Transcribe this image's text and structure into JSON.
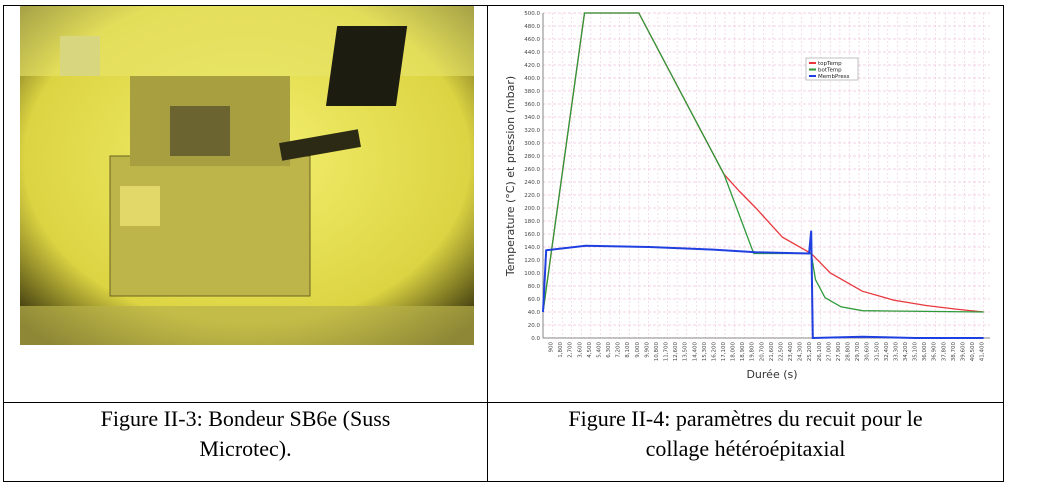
{
  "figures": [
    {
      "caption": "Figure II-3: Bondeur SB6e (Suss Microtec)."
    },
    {
      "caption": "Figure II-4: paramètres du recuit pour le collage hétéroépitaxial"
    }
  ],
  "chart_data": {
    "type": "line",
    "ylabel": "Temperature (°C) et pression (mbar)",
    "xlabel": "Durée (s)",
    "xlim": [
      0,
      42000
    ],
    "ylim": [
      0,
      500
    ],
    "grid": true,
    "legend": "upper right",
    "yticks": [
      {
        "value": 0,
        "label": "0.0"
      },
      {
        "value": 20,
        "label": "20.0"
      },
      {
        "value": 40,
        "label": "40.0"
      },
      {
        "value": 60,
        "label": "60.0"
      },
      {
        "value": 80,
        "label": "80.0"
      },
      {
        "value": 100,
        "label": "100.0"
      },
      {
        "value": 120,
        "label": "120.0"
      },
      {
        "value": 140,
        "label": "140.0"
      },
      {
        "value": 160,
        "label": "160.0"
      },
      {
        "value": 180,
        "label": "180.0"
      },
      {
        "value": 200,
        "label": "200.0"
      },
      {
        "value": 220,
        "label": "220.0"
      },
      {
        "value": 240,
        "label": "240.0"
      },
      {
        "value": 260,
        "label": "260.0"
      },
      {
        "value": 280,
        "label": "280.0"
      },
      {
        "value": 300,
        "label": "300.0"
      },
      {
        "value": 320,
        "label": "320.0"
      },
      {
        "value": 340,
        "label": "340.0"
      },
      {
        "value": 360,
        "label": "360.0"
      },
      {
        "value": 380,
        "label": "380.0"
      },
      {
        "value": 400,
        "label": "400.0"
      },
      {
        "value": 420,
        "label": "420.0"
      },
      {
        "value": 440,
        "label": "440.0"
      },
      {
        "value": 460,
        "label": "460.0"
      },
      {
        "value": 480,
        "label": "480.0"
      },
      {
        "value": 500,
        "label": "500.0"
      }
    ],
    "xticks": [
      900,
      {
        "value": 1800,
        "label": "1,800"
      },
      {
        "value": 2700,
        "label": "2,700"
      },
      {
        "value": 3600,
        "label": "3,600"
      },
      {
        "value": 4500,
        "label": "4,500"
      },
      {
        "value": 5400,
        "label": "5,400"
      },
      {
        "value": 6300,
        "label": "6,300"
      },
      {
        "value": 7200,
        "label": "7,200"
      },
      {
        "value": 8100,
        "label": "8,100"
      },
      {
        "value": 9000,
        "label": "9,000"
      },
      {
        "value": 9900,
        "label": "9,900"
      },
      {
        "value": 10800,
        "label": "10,800"
      },
      {
        "value": 11700,
        "label": "11,700"
      },
      {
        "value": 12600,
        "label": "12,600"
      },
      {
        "value": 13500,
        "label": "13,500"
      },
      {
        "value": 14400,
        "label": "14,400"
      },
      {
        "value": 15300,
        "label": "15,300"
      },
      {
        "value": 16200,
        "label": "16,200"
      },
      {
        "value": 17100,
        "label": "17,100"
      },
      {
        "value": 18000,
        "label": "18,000"
      },
      {
        "value": 18900,
        "label": "18,900"
      },
      {
        "value": 19800,
        "label": "19,800"
      },
      {
        "value": 20700,
        "label": "20,700"
      },
      {
        "value": 21600,
        "label": "21,600"
      },
      {
        "value": 22500,
        "label": "22,500"
      },
      {
        "value": 23400,
        "label": "23,400"
      },
      {
        "value": 24300,
        "label": "24,300"
      },
      {
        "value": 25200,
        "label": "25,200"
      },
      {
        "value": 26100,
        "label": "26,100"
      },
      {
        "value": 27000,
        "label": "27,000"
      },
      {
        "value": 27900,
        "label": "27,900"
      },
      {
        "value": 28800,
        "label": "28,800"
      },
      {
        "value": 29700,
        "label": "29,700"
      },
      {
        "value": 30600,
        "label": "30,600"
      },
      {
        "value": 31500,
        "label": "31,500"
      },
      {
        "value": 32400,
        "label": "32,400"
      },
      {
        "value": 33300,
        "label": "33,300"
      },
      {
        "value": 34200,
        "label": "34,200"
      },
      {
        "value": 35100,
        "label": "35,100"
      },
      {
        "value": 36000,
        "label": "36,000"
      },
      {
        "value": 36900,
        "label": "36,900"
      },
      {
        "value": 37800,
        "label": "37,800"
      },
      {
        "value": 38700,
        "label": "38,700"
      },
      {
        "value": 39600,
        "label": "39,600"
      },
      {
        "value": 40500,
        "label": "40,500"
      },
      {
        "value": 41400,
        "label": "41,400"
      }
    ],
    "series": [
      {
        "name": "topTemp",
        "color": "#e8383d",
        "x": [
          0,
          3900,
          9000,
          17000,
          18500,
          20000,
          22500,
          25200,
          27000,
          30000,
          33000,
          36000,
          39000,
          41400
        ],
        "values": [
          40,
          500,
          500,
          252,
          225,
          200,
          155,
          130,
          100,
          72,
          58,
          50,
          44,
          40
        ]
      },
      {
        "name": "botTemp",
        "color": "#2e9a3a",
        "x": [
          0,
          3900,
          9000,
          17000,
          19800,
          25200,
          25600,
          26500,
          28000,
          30000,
          41400
        ],
        "values": [
          40,
          500,
          500,
          252,
          130,
          130,
          90,
          62,
          48,
          42,
          40
        ]
      },
      {
        "name": "MembPress",
        "color": "#1f3fe0",
        "x": [
          0,
          300,
          4000,
          10000,
          16000,
          20000,
          25000,
          25200,
          25350,
          30000,
          35000,
          40500,
          41400
        ],
        "values": [
          40,
          135,
          142,
          140,
          136,
          132,
          130,
          165,
          0,
          2,
          0,
          0,
          0
        ]
      }
    ]
  }
}
